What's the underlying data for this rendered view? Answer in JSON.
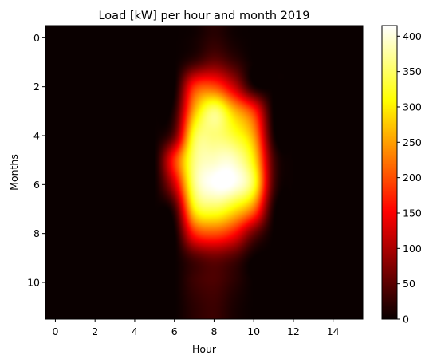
{
  "chart_data": {
    "type": "heatmap",
    "title": "Load [kW] per hour and month 2019",
    "xlabel": "Hour",
    "ylabel": "Months",
    "x_range": [
      -0.5,
      15.5
    ],
    "y_range": [
      -0.5,
      11.5
    ],
    "x_ticks": [
      0,
      2,
      4,
      6,
      8,
      10,
      12,
      14
    ],
    "y_ticks": [
      0,
      2,
      4,
      6,
      8,
      10
    ],
    "colormap": "hot",
    "interpolation": "smooth",
    "colorbar": {
      "min": 0,
      "max": 415,
      "ticks": [
        0,
        50,
        100,
        150,
        200,
        250,
        300,
        350,
        400
      ]
    },
    "x_hours": [
      0,
      1,
      2,
      3,
      4,
      5,
      6,
      7,
      8,
      9,
      10,
      11,
      12,
      13,
      14,
      15
    ],
    "y_months": [
      0,
      1,
      2,
      3,
      4,
      5,
      6,
      7,
      8,
      9,
      10,
      11
    ],
    "values": [
      [
        0,
        0,
        0,
        0,
        0,
        0,
        0,
        5,
        20,
        5,
        0,
        0,
        0,
        0,
        0,
        0
      ],
      [
        0,
        0,
        0,
        0,
        0,
        0,
        0,
        30,
        60,
        30,
        0,
        0,
        0,
        0,
        0,
        0
      ],
      [
        0,
        0,
        0,
        0,
        0,
        0,
        0,
        180,
        200,
        120,
        10,
        0,
        0,
        0,
        0,
        0
      ],
      [
        0,
        0,
        0,
        0,
        0,
        0,
        20,
        260,
        360,
        270,
        180,
        0,
        0,
        0,
        0,
        0
      ],
      [
        0,
        0,
        0,
        0,
        0,
        0,
        60,
        330,
        360,
        330,
        250,
        10,
        0,
        0,
        0,
        0
      ],
      [
        0,
        0,
        0,
        0,
        0,
        0,
        180,
        360,
        390,
        390,
        300,
        40,
        0,
        0,
        0,
        0
      ],
      [
        0,
        0,
        0,
        0,
        0,
        0,
        120,
        360,
        415,
        410,
        330,
        40,
        0,
        0,
        0,
        0
      ],
      [
        0,
        0,
        0,
        0,
        0,
        0,
        30,
        300,
        340,
        300,
        220,
        10,
        0,
        0,
        0,
        0
      ],
      [
        0,
        0,
        0,
        0,
        0,
        0,
        0,
        170,
        200,
        160,
        60,
        0,
        0,
        0,
        0,
        0
      ],
      [
        0,
        0,
        0,
        0,
        0,
        0,
        0,
        40,
        60,
        40,
        0,
        0,
        0,
        0,
        0,
        0
      ],
      [
        0,
        0,
        0,
        0,
        0,
        0,
        0,
        30,
        40,
        20,
        0,
        0,
        0,
        0,
        0,
        0
      ],
      [
        0,
        0,
        0,
        0,
        0,
        0,
        0,
        20,
        30,
        10,
        0,
        0,
        0,
        0,
        0,
        0
      ]
    ]
  }
}
